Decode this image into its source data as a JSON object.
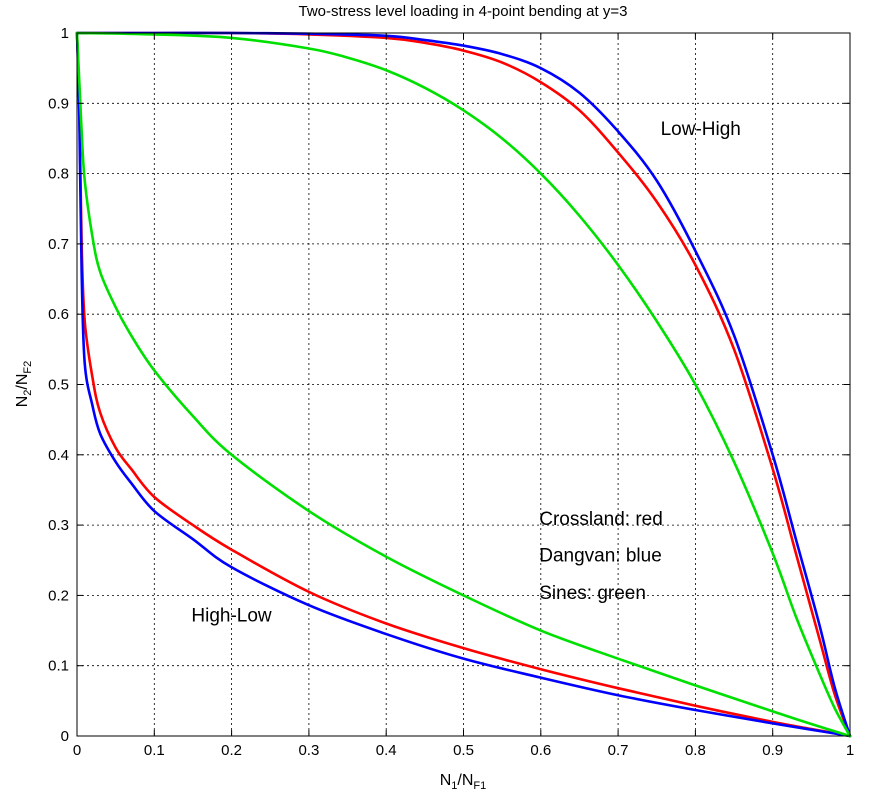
{
  "chart_data": {
    "type": "line",
    "title": "Two-stress level loading in 4-point bending at y=3",
    "xlabel": {
      "main": "N",
      "sub1": "1",
      "sep": "/N",
      "sub2": "F1"
    },
    "ylabel": {
      "main": "N",
      "sub1": "2",
      "sep": "/N",
      "sub2": "F2"
    },
    "xlim": [
      0,
      1
    ],
    "ylim": [
      0,
      1
    ],
    "xticks": [
      0,
      0.1,
      0.2,
      0.3,
      0.4,
      0.5,
      0.6,
      0.7,
      0.8,
      0.9,
      1
    ],
    "yticks": [
      0,
      0.1,
      0.2,
      0.3,
      0.4,
      0.5,
      0.6,
      0.7,
      0.8,
      0.9,
      1
    ],
    "xtick_labels": [
      "0",
      "0.1",
      "0.2",
      "0.3",
      "0.4",
      "0.5",
      "0.6",
      "0.7",
      "0.8",
      "0.9",
      "1"
    ],
    "ytick_labels": [
      "0",
      "0.1",
      "0.2",
      "0.3",
      "0.4",
      "0.5",
      "0.6",
      "0.7",
      "0.8",
      "0.9",
      "1"
    ],
    "grid": true,
    "annotations": [
      {
        "name": "annotation-low-high",
        "text": "Low-High",
        "x": 0.755,
        "y": 0.855
      },
      {
        "name": "annotation-high-low",
        "text": "High-Low",
        "x": 0.148,
        "y": 0.163
      },
      {
        "name": "annotation-crossland",
        "text": "Crossland: red",
        "x": 0.598,
        "y": 0.3
      },
      {
        "name": "annotation-dangvan",
        "text": "Dangvan: blue",
        "x": 0.598,
        "y": 0.248
      },
      {
        "name": "annotation-sines",
        "text": "Sines: green",
        "x": 0.598,
        "y": 0.195
      }
    ],
    "series": [
      {
        "id": "crossland-low-high",
        "color": "#ff0000",
        "x": [
          0,
          0.1,
          0.2,
          0.3,
          0.4,
          0.45,
          0.5,
          0.55,
          0.6,
          0.65,
          0.7,
          0.75,
          0.8,
          0.85,
          0.9,
          0.93,
          0.96,
          0.98,
          1.0
        ],
        "y": [
          1,
          1,
          1,
          0.998,
          0.993,
          0.986,
          0.975,
          0.958,
          0.93,
          0.89,
          0.83,
          0.76,
          0.67,
          0.55,
          0.38,
          0.26,
          0.14,
          0.06,
          0
        ]
      },
      {
        "id": "dangvan-low-high",
        "color": "#0000ff",
        "x": [
          0,
          0.1,
          0.2,
          0.3,
          0.4,
          0.45,
          0.5,
          0.55,
          0.6,
          0.65,
          0.7,
          0.75,
          0.8,
          0.85,
          0.9,
          0.93,
          0.96,
          0.98,
          1.0
        ],
        "y": [
          1,
          1,
          1,
          0.999,
          0.996,
          0.99,
          0.982,
          0.97,
          0.95,
          0.915,
          0.86,
          0.79,
          0.69,
          0.57,
          0.4,
          0.28,
          0.16,
          0.07,
          0
        ]
      },
      {
        "id": "sines-low-high",
        "color": "#00e000",
        "x": [
          0,
          0.1,
          0.2,
          0.3,
          0.35,
          0.4,
          0.45,
          0.5,
          0.55,
          0.6,
          0.65,
          0.7,
          0.75,
          0.8,
          0.85,
          0.9,
          0.93,
          0.96,
          0.98,
          1.0
        ],
        "y": [
          1,
          0.998,
          0.993,
          0.978,
          0.965,
          0.947,
          0.922,
          0.89,
          0.85,
          0.8,
          0.74,
          0.67,
          0.59,
          0.5,
          0.39,
          0.26,
          0.17,
          0.09,
          0.04,
          0
        ]
      },
      {
        "id": "crossland-high-low",
        "color": "#ff0000",
        "x": [
          0,
          0.003,
          0.006,
          0.01,
          0.02,
          0.03,
          0.05,
          0.07,
          0.1,
          0.15,
          0.2,
          0.3,
          0.4,
          0.5,
          0.6,
          0.7,
          0.8,
          0.9,
          0.95,
          1.0
        ],
        "y": [
          1,
          0.9,
          0.7,
          0.59,
          0.51,
          0.46,
          0.41,
          0.38,
          0.34,
          0.3,
          0.265,
          0.205,
          0.16,
          0.125,
          0.095,
          0.068,
          0.043,
          0.02,
          0.01,
          0
        ]
      },
      {
        "id": "dangvan-high-low",
        "color": "#0000ff",
        "x": [
          0,
          0.003,
          0.006,
          0.01,
          0.02,
          0.03,
          0.05,
          0.07,
          0.1,
          0.15,
          0.2,
          0.3,
          0.4,
          0.5,
          0.6,
          0.7,
          0.8,
          0.9,
          0.95,
          1.0
        ],
        "y": [
          1,
          0.88,
          0.66,
          0.53,
          0.47,
          0.43,
          0.39,
          0.36,
          0.32,
          0.28,
          0.24,
          0.186,
          0.145,
          0.11,
          0.083,
          0.058,
          0.037,
          0.018,
          0.009,
          0
        ]
      },
      {
        "id": "sines-high-low",
        "color": "#00e000",
        "x": [
          0,
          0.003,
          0.006,
          0.01,
          0.02,
          0.03,
          0.05,
          0.07,
          0.1,
          0.15,
          0.2,
          0.3,
          0.4,
          0.5,
          0.6,
          0.7,
          0.8,
          0.9,
          0.95,
          1.0
        ],
        "y": [
          1,
          0.93,
          0.86,
          0.79,
          0.71,
          0.66,
          0.61,
          0.57,
          0.52,
          0.455,
          0.4,
          0.32,
          0.255,
          0.2,
          0.15,
          0.11,
          0.072,
          0.035,
          0.017,
          0
        ]
      }
    ]
  }
}
